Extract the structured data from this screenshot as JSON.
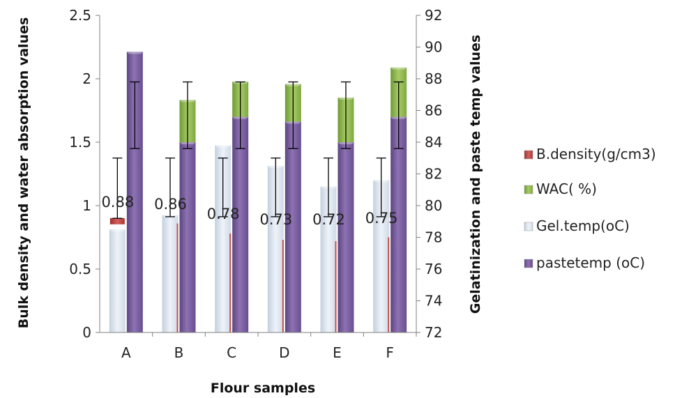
{
  "chart_data": {
    "type": "bar",
    "xlabel": "Flour samples",
    "ylabel_left": "Bulk density and water absorption values",
    "ylabel_right": "Gelatinization  and paste temp values",
    "categories": [
      "A",
      "B",
      "C",
      "D",
      "E",
      "F"
    ],
    "ylim_left": [
      0,
      2.5
    ],
    "yticks_left": [
      "0",
      "0.5",
      "1",
      "1.5",
      "2",
      "2.5"
    ],
    "ylim_right": [
      72,
      92
    ],
    "yticks_right": [
      "72",
      "74",
      "76",
      "78",
      "80",
      "82",
      "84",
      "86",
      "88",
      "90",
      "92"
    ],
    "grid": false,
    "legend_position": "right",
    "series": [
      {
        "name": "B.density(g/cm3)",
        "axis": "left",
        "stack": "left",
        "values": [
          0.88,
          0.86,
          0.78,
          0.73,
          0.72,
          0.75
        ],
        "color": "#c0504d"
      },
      {
        "name": "WAC( %)",
        "axis": "left",
        "stack": "left",
        "values": [
          0.0,
          0.9,
          0.75,
          0.8,
          0.95,
          1.05
        ],
        "color": "#9bbb59"
      },
      {
        "name": "Gel.temp(oC)",
        "axis": "right",
        "stack": "left",
        "values": [
          78.5,
          79.4,
          83.8,
          82.5,
          81.2,
          81.6
        ],
        "color": "#dce6f2"
      },
      {
        "name": "pastetemp (oC)",
        "axis": "right",
        "stack": "right",
        "values": [
          89.7,
          84.0,
          85.6,
          85.3,
          84.0,
          85.6
        ],
        "color": "#8064a2"
      }
    ],
    "data_labels": [
      "0.88",
      "0.86",
      "0.78",
      "0.73",
      "0.72",
      "0.75"
    ],
    "error_bars": {
      "axis": "right",
      "left_group": [
        [
          79.2,
          83.0
        ],
        [
          79.3,
          83.0
        ],
        [
          79.3,
          83.0
        ],
        [
          79.3,
          83.0
        ],
        [
          79.3,
          83.0
        ],
        [
          79.3,
          83.0
        ]
      ],
      "right_group": [
        [
          83.6,
          87.8
        ],
        [
          83.6,
          87.8
        ],
        [
          83.6,
          87.8
        ],
        [
          83.6,
          87.8
        ],
        [
          83.6,
          87.8
        ],
        [
          83.6,
          87.8
        ]
      ]
    }
  }
}
